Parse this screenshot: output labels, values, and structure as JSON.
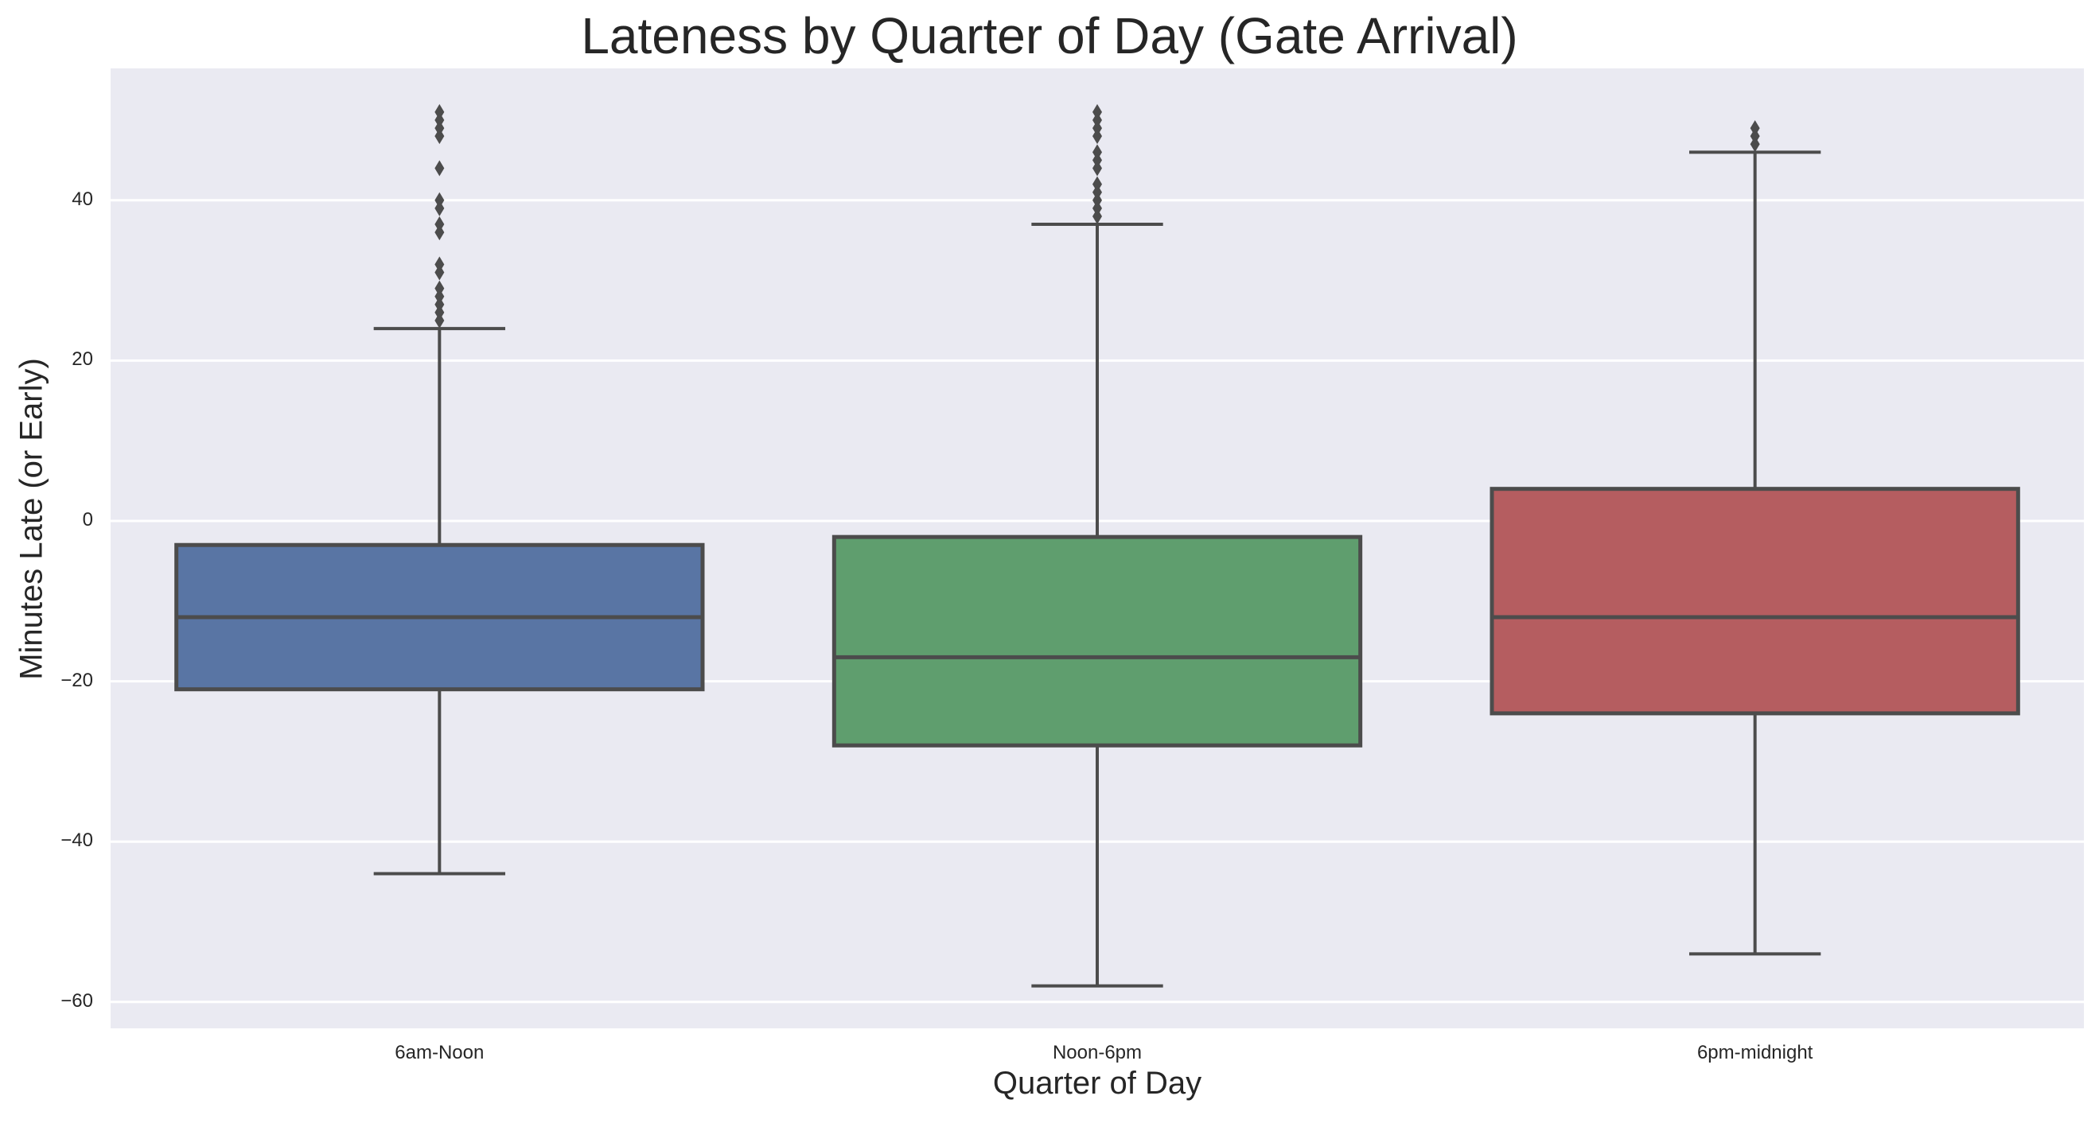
{
  "chart_data": {
    "type": "box",
    "title": "Lateness by Quarter of Day (Gate Arrival)",
    "xlabel": "Quarter of Day",
    "ylabel": "Minutes Late (or Early)",
    "categories": [
      "6am-Noon",
      "Noon-6pm",
      "6pm-midnight"
    ],
    "ylim": [
      -63.3,
      56.5
    ],
    "yticks": [
      40,
      20,
      0,
      -20,
      -40,
      -60
    ],
    "ytick_labels": [
      "40",
      "20",
      "0",
      "−20",
      "−40",
      "−60"
    ],
    "grid": true,
    "series": [
      {
        "name": "6am-Noon",
        "color": "#5975a4",
        "whisker_low": -44,
        "q1": -21,
        "median": -12,
        "q3": -3,
        "whisker_high": 24,
        "outliers": [
          25,
          26,
          27,
          28,
          29,
          31,
          32,
          36,
          37,
          39,
          40,
          44,
          48,
          49,
          50,
          51
        ]
      },
      {
        "name": "Noon-6pm",
        "color": "#5f9e6e",
        "whisker_low": -58,
        "q1": -28,
        "median": -17,
        "q3": -2,
        "whisker_high": 37,
        "outliers": [
          38,
          39,
          40,
          41,
          42,
          44,
          45,
          46,
          48,
          49,
          50,
          51
        ]
      },
      {
        "name": "6pm-midnight",
        "color": "#b55d60",
        "whisker_low": -54,
        "q1": -24,
        "median": -12,
        "q3": 4,
        "whisker_high": 46,
        "outliers": [
          47,
          48,
          49
        ]
      }
    ]
  },
  "style": {
    "background": "#eaeaf2",
    "grid_color": "#ffffff",
    "line_color": "#4c4c4c"
  }
}
